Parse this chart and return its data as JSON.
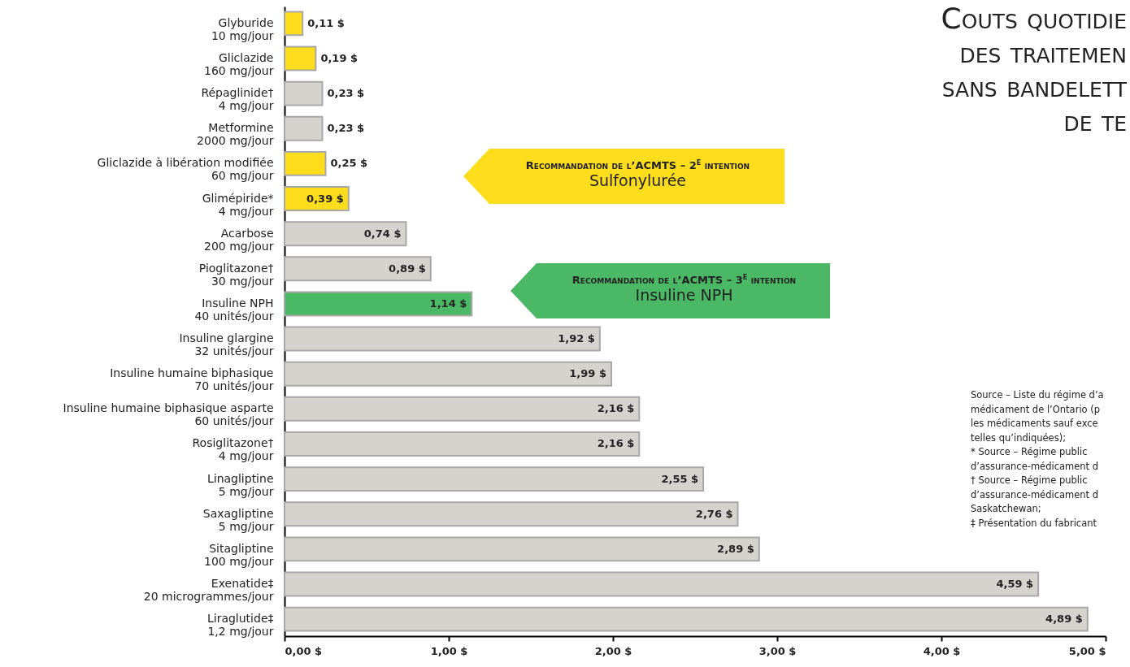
{
  "chart_data": {
    "type": "bar",
    "orientation": "horizontal",
    "title": "Couts quotidie\ndes traitemen\nsans bandelett\nde te",
    "categories": [
      "Glyburide\n10 mg/jour",
      "Gliclazide\n160 mg/jour",
      "Répaglinide†\n4 mg/jour",
      "Metformine\n2000 mg/jour",
      "Gliclazide à libération modifiée\n60 mg/jour",
      "Glimépiride*\n4 mg/jour",
      "Acarbose\n200 mg/jour",
      "Pioglitazone†\n30 mg/jour",
      "Insuline NPH\n40 unités/jour",
      "Insuline glargine\n32 unités/jour",
      "Insuline humaine biphasique\n70 unités/jour",
      "Insuline humaine biphasique asparte\n60 unités/jour",
      "Rosiglitazone†\n4 mg/jour",
      "Linagliptine\n5 mg/jour",
      "Saxagliptine\n5 mg/jour",
      "Sitagliptine\n100 mg/jour",
      "Exenatide‡\n20 microgrammes/jour",
      "Liraglutide‡\n1,2 mg/jour"
    ],
    "values": [
      0.11,
      0.19,
      0.23,
      0.23,
      0.25,
      0.39,
      0.74,
      0.89,
      1.14,
      1.92,
      1.99,
      2.16,
      2.16,
      2.55,
      2.76,
      2.89,
      4.59,
      4.89
    ],
    "value_labels": [
      "0,11 $",
      "0,19 $",
      "0,23 $",
      "0,23 $",
      "0,25 $",
      "0,39 $",
      "0,74 $",
      "0,89 $",
      "1,14 $",
      "1,92 $",
      "1,99 $",
      "2,16 $",
      "2,16 $",
      "2,55 $",
      "2,76 $",
      "2,89 $",
      "4,59 $",
      "4,89 $"
    ],
    "colors": [
      "#fedd1c",
      "#fedd1c",
      "#d4d3cd",
      "#d4d3cd",
      "#fedd1c",
      "#fedd1c",
      "#d4d3cd",
      "#d4d3cd",
      "#4ab865",
      "#d4d3cd",
      "#d4d3cd",
      "#d4d3cd",
      "#d4d3cd",
      "#d4d3cd",
      "#d4d3cd",
      "#d4d3cd",
      "#d4d3cd",
      "#d4d3cd"
    ],
    "xlim": [
      0,
      5
    ],
    "xticks": [
      {
        "value": 0,
        "label": "0,00 $"
      },
      {
        "value": 1,
        "label": "1,00 $"
      },
      {
        "value": 2,
        "label": "2,00 $"
      },
      {
        "value": 3,
        "label": "3,00 $"
      },
      {
        "value": 4,
        "label": "4,00 $"
      },
      {
        "value": 5,
        "label": "5,00 $"
      }
    ],
    "grid": false,
    "annotations": [
      "Recommandation de l’ACMTS – 2$^{e}$ intention\nSulfonylurée",
      "Recommandation de l’ACMTS – 3$^{e}$ intention\nInsuline NPH",
      "Source – Liste du régime d’a\nmédicament de l’Ontario (p\nles médicaments sauf exce\ntelles qu’indiquées);\n* Source – Régime public\nd’assurance-médicament d\n† Source – Régime public\nd’assurance-médicament d\nSaskatchewan;\n‡ Présentation du fabricant"
    ]
  }
}
